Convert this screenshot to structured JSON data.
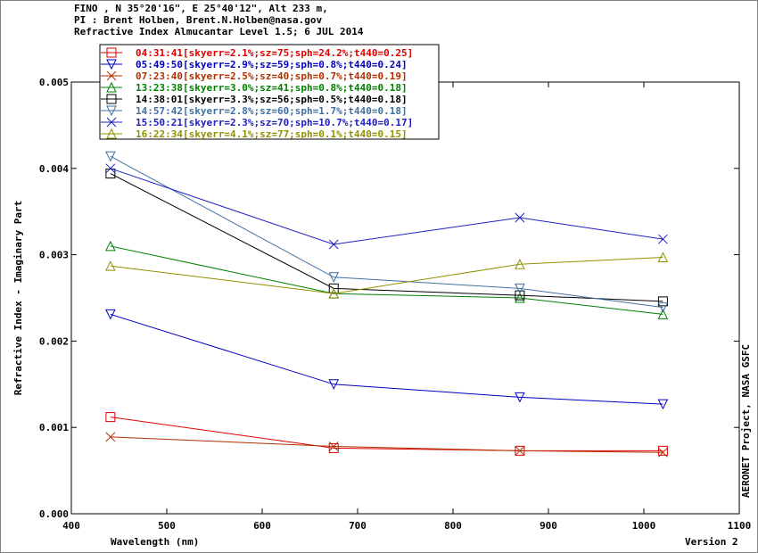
{
  "header": {
    "line1": "FINO , N 35°20'16\", E 25°40'12\", Alt 233 m,",
    "line2": "PI : Brent Holben, Brent.N.Holben@nasa.gov",
    "line3": "Refractive Index Almucantar Level 1.5; 6 JUL 2014"
  },
  "side_text": "AERONET Project, NASA GSFC",
  "version_text": "Version 2",
  "chart_data": {
    "type": "line",
    "xlabel": "Wavelength (nm)",
    "ylabel": "Refractive Index - Imaginary Part",
    "xlim": [
      400,
      1100
    ],
    "ylim": [
      0.0,
      0.005
    ],
    "x_ticks": [
      "400",
      "500",
      "600",
      "700",
      "800",
      "900",
      "1000",
      "1100"
    ],
    "y_ticks": [
      "0.000",
      "0.001",
      "0.002",
      "0.003",
      "0.004",
      "0.005"
    ],
    "grid": false,
    "legend_position": "top-left",
    "x": [
      441,
      675,
      870,
      1020
    ],
    "series": [
      {
        "name": "04:31:41[skyerr=2.1%;sz=75;sph=24.2%;t440=0.25]",
        "color": "#e00000",
        "marker": "square",
        "values": [
          0.00112,
          0.00076,
          0.00073,
          0.00073
        ]
      },
      {
        "name": "05:49:50[skyerr=2.9%;sz=59;sph=0.8%;t440=0.24]",
        "color": "#0000c0",
        "marker": "triangle-down",
        "values": [
          0.00231,
          0.0015,
          0.00135,
          0.00127
        ]
      },
      {
        "name": "07:23:40[skyerr=2.5%;sz=40;sph=0.7%;t440=0.19]",
        "color": "#b03000",
        "marker": "x",
        "values": [
          0.00089,
          0.00078,
          0.00073,
          0.00071
        ]
      },
      {
        "name": "13:23:38[skyerr=3.0%;sz=41;sph=0.8%;t440=0.18]",
        "color": "#008000",
        "marker": "triangle-up",
        "values": [
          0.0031,
          0.00255,
          0.0025,
          0.00231
        ]
      },
      {
        "name": "14:38:01[skyerr=3.3%;sz=56;sph=0.5%;t440=0.18]",
        "color": "#000000",
        "marker": "square",
        "values": [
          0.00394,
          0.00261,
          0.00253,
          0.00246
        ]
      },
      {
        "name": "14:57:42[skyerr=2.8%;sz=60;sph=1.7%;t440=0.18]",
        "color": "#4070a0",
        "marker": "triangle-down",
        "values": [
          0.00414,
          0.00274,
          0.00261,
          0.00239
        ]
      },
      {
        "name": "15:50:21[skyerr=2.3%;sz=70;sph=10.7%;t440=0.17]",
        "color": "#2020c0",
        "marker": "x",
        "values": [
          0.004,
          0.00312,
          0.00343,
          0.00318
        ]
      },
      {
        "name": "16:22:34[skyerr=4.1%;sz=77;sph=0.1%;t440=0.15]",
        "color": "#909000",
        "marker": "triangle-up",
        "values": [
          0.00287,
          0.00255,
          0.00289,
          0.00297
        ]
      }
    ]
  }
}
